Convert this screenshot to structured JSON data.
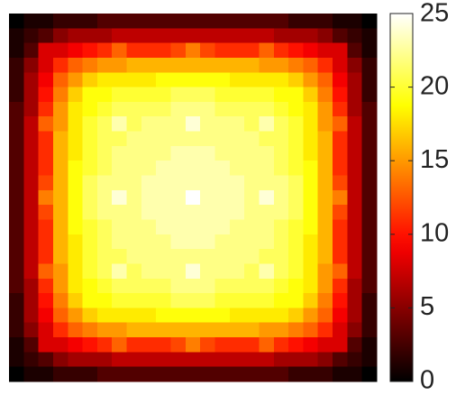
{
  "chart_data": {
    "type": "heatmap",
    "colormap": "hot",
    "zlim": [
      0,
      25
    ],
    "zticks": [
      0,
      5,
      10,
      15,
      20,
      25
    ],
    "values": [
      [
        0,
        1,
        1,
        2,
        2,
        2,
        3,
        3,
        3,
        3,
        3,
        3,
        3,
        3,
        3,
        3,
        3,
        3,
        3,
        2,
        2,
        2,
        1,
        1,
        0
      ],
      [
        1,
        2,
        3,
        5,
        6,
        6,
        6,
        7,
        7,
        7,
        7,
        7,
        7,
        7,
        7,
        7,
        7,
        7,
        6,
        6,
        6,
        5,
        3,
        2,
        1
      ],
      [
        1,
        3,
        8,
        8,
        9,
        10,
        11,
        13,
        11,
        11,
        11,
        12,
        14,
        12,
        11,
        11,
        11,
        13,
        11,
        10,
        9,
        8,
        8,
        3,
        1
      ],
      [
        2,
        5,
        8,
        11,
        13,
        14,
        15,
        15,
        16,
        16,
        16,
        16,
        16,
        16,
        16,
        16,
        16,
        15,
        15,
        14,
        13,
        11,
        8,
        5,
        2
      ],
      [
        2,
        6,
        9,
        13,
        15,
        17,
        18,
        18,
        18,
        18,
        19,
        19,
        19,
        19,
        19,
        18,
        18,
        18,
        18,
        17,
        15,
        13,
        9,
        6,
        2
      ],
      [
        2,
        6,
        10,
        14,
        17,
        19,
        19,
        20,
        20,
        20,
        20,
        21,
        21,
        21,
        20,
        20,
        20,
        20,
        19,
        19,
        17,
        14,
        10,
        6,
        2
      ],
      [
        3,
        6,
        11,
        15,
        18,
        19,
        20,
        21,
        21,
        21,
        21,
        22,
        22,
        22,
        21,
        21,
        21,
        21,
        20,
        19,
        18,
        15,
        11,
        6,
        3
      ],
      [
        3,
        7,
        13,
        15,
        18,
        20,
        21,
        23,
        21,
        22,
        22,
        22,
        24,
        22,
        22,
        22,
        21,
        23,
        21,
        20,
        18,
        15,
        13,
        7,
        3
      ],
      [
        3,
        7,
        11,
        16,
        18,
        20,
        21,
        21,
        22,
        22,
        22,
        22,
        22,
        22,
        22,
        22,
        22,
        21,
        21,
        20,
        18,
        16,
        11,
        7,
        3
      ],
      [
        3,
        7,
        11,
        16,
        18,
        20,
        21,
        22,
        22,
        22,
        22,
        23,
        23,
        23,
        22,
        22,
        22,
        22,
        21,
        20,
        18,
        16,
        11,
        7,
        3
      ],
      [
        3,
        7,
        11,
        16,
        19,
        20,
        21,
        22,
        22,
        22,
        23,
        23,
        23,
        23,
        23,
        22,
        22,
        22,
        21,
        20,
        19,
        16,
        11,
        7,
        3
      ],
      [
        3,
        7,
        12,
        16,
        19,
        21,
        22,
        22,
        22,
        23,
        23,
        23,
        23,
        23,
        23,
        23,
        22,
        22,
        22,
        21,
        19,
        16,
        12,
        7,
        3
      ],
      [
        3,
        7,
        14,
        16,
        19,
        21,
        22,
        24,
        22,
        23,
        23,
        23,
        25,
        23,
        23,
        23,
        22,
        24,
        22,
        21,
        19,
        16,
        14,
        7,
        3
      ],
      [
        3,
        7,
        12,
        16,
        19,
        21,
        22,
        22,
        22,
        23,
        23,
        23,
        23,
        23,
        23,
        23,
        22,
        22,
        22,
        21,
        19,
        16,
        12,
        7,
        3
      ],
      [
        3,
        7,
        11,
        16,
        19,
        20,
        21,
        22,
        22,
        22,
        23,
        23,
        23,
        23,
        23,
        22,
        22,
        22,
        21,
        20,
        19,
        16,
        11,
        7,
        3
      ],
      [
        3,
        7,
        11,
        16,
        18,
        20,
        21,
        22,
        22,
        22,
        22,
        23,
        23,
        23,
        22,
        22,
        22,
        22,
        21,
        20,
        18,
        16,
        11,
        7,
        3
      ],
      [
        3,
        7,
        11,
        16,
        18,
        20,
        21,
        21,
        22,
        22,
        22,
        22,
        22,
        22,
        22,
        22,
        22,
        21,
        21,
        20,
        18,
        16,
        11,
        7,
        3
      ],
      [
        3,
        7,
        13,
        15,
        18,
        20,
        21,
        23,
        21,
        22,
        22,
        22,
        24,
        22,
        22,
        22,
        21,
        23,
        21,
        20,
        18,
        15,
        13,
        7,
        3
      ],
      [
        3,
        6,
        11,
        15,
        18,
        19,
        20,
        21,
        21,
        21,
        21,
        22,
        22,
        22,
        21,
        21,
        21,
        21,
        20,
        19,
        18,
        15,
        11,
        6,
        3
      ],
      [
        2,
        6,
        10,
        14,
        17,
        19,
        19,
        20,
        20,
        20,
        20,
        21,
        21,
        21,
        20,
        20,
        20,
        20,
        19,
        19,
        17,
        14,
        10,
        6,
        2
      ],
      [
        2,
        6,
        9,
        13,
        15,
        17,
        18,
        18,
        18,
        18,
        19,
        19,
        19,
        19,
        19,
        18,
        18,
        18,
        18,
        17,
        15,
        13,
        9,
        6,
        2
      ],
      [
        2,
        5,
        8,
        11,
        13,
        14,
        15,
        15,
        16,
        16,
        16,
        16,
        16,
        16,
        16,
        16,
        16,
        15,
        15,
        14,
        13,
        11,
        8,
        5,
        2
      ],
      [
        1,
        3,
        8,
        8,
        9,
        10,
        11,
        13,
        11,
        11,
        11,
        12,
        14,
        12,
        11,
        11,
        11,
        13,
        11,
        10,
        9,
        8,
        8,
        3,
        1
      ],
      [
        1,
        2,
        3,
        5,
        6,
        6,
        6,
        7,
        7,
        7,
        7,
        7,
        7,
        7,
        7,
        7,
        7,
        7,
        6,
        6,
        6,
        5,
        3,
        2,
        1
      ],
      [
        0,
        1,
        1,
        2,
        2,
        2,
        3,
        3,
        3,
        3,
        3,
        3,
        3,
        3,
        3,
        3,
        3,
        3,
        3,
        2,
        2,
        2,
        1,
        1,
        0
      ]
    ]
  }
}
